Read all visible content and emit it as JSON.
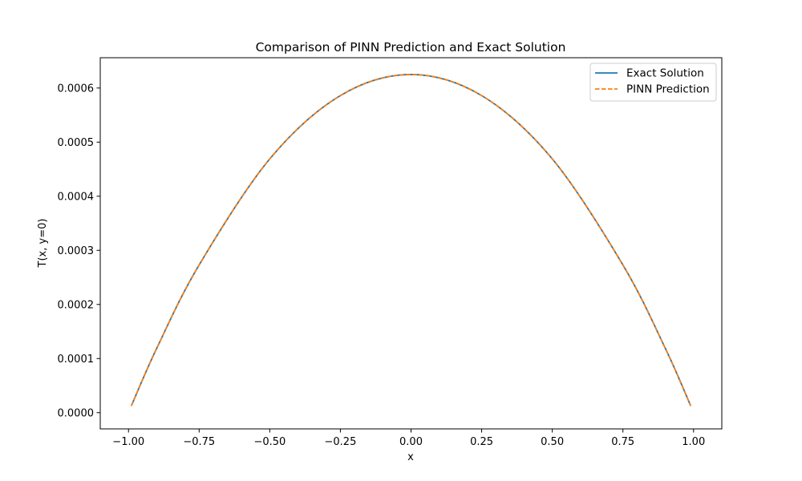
{
  "chart_data": {
    "type": "line",
    "title": "Comparison of PINN Prediction and Exact Solution",
    "xlabel": "x",
    "ylabel": "T(x, y=0)",
    "xlim": [
      -1.1,
      1.1
    ],
    "ylim": [
      -3e-05,
      0.000656
    ],
    "grid": false,
    "legend_position": "top-right",
    "x_ticks": [
      -1.0,
      -0.75,
      -0.5,
      -0.25,
      0.0,
      0.25,
      0.5,
      0.75,
      1.0
    ],
    "x_tick_labels": [
      "−1.00",
      "−0.75",
      "−0.50",
      "−0.25",
      "0.00",
      "0.25",
      "0.50",
      "0.75",
      "1.00"
    ],
    "y_ticks": [
      0.0,
      0.0001,
      0.0002,
      0.0003,
      0.0004,
      0.0005,
      0.0006
    ],
    "y_tick_labels": [
      "0.0000",
      "0.0001",
      "0.0002",
      "0.0003",
      "0.0004",
      "0.0005",
      "0.0006"
    ],
    "x": [
      -0.99,
      -0.9,
      -0.75,
      -0.5,
      -0.25,
      0.0,
      0.25,
      0.5,
      0.75,
      0.9,
      0.99
    ],
    "series": [
      {
        "name": "Exact Solution",
        "color": "#1f77b4",
        "style": "solid",
        "values": [
          1.25e-05,
          0.000119,
          0.000273,
          0.000469,
          0.000586,
          0.000625,
          0.000586,
          0.000469,
          0.000273,
          0.000119,
          1.25e-05
        ]
      },
      {
        "name": "PINN Prediction",
        "color": "#ff7f0e",
        "style": "dashed",
        "values": [
          1.25e-05,
          0.000119,
          0.000273,
          0.000469,
          0.000586,
          0.000625,
          0.000586,
          0.000469,
          0.000273,
          0.000119,
          1.25e-05
        ]
      }
    ]
  }
}
